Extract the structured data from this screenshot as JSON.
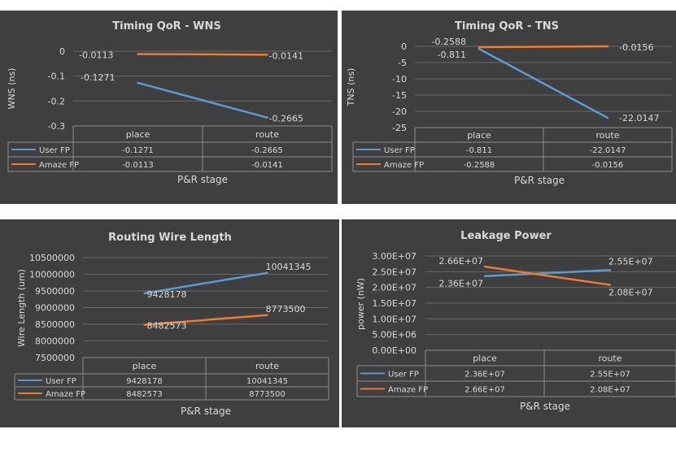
{
  "colors": {
    "user": "#5b9bd5",
    "amaze": "#ed7d31",
    "text": "#d9d9d9",
    "grid": "#6a6a6a",
    "table": "#8c8c8c"
  },
  "chart_data": [
    {
      "type": "line",
      "title": "Timing QoR - WNS",
      "xlabel": "P&R stage",
      "ylabel": "WNS (ns)",
      "categories": [
        "place",
        "route"
      ],
      "ylim": [
        -0.3,
        0
      ],
      "yticks": [
        "0",
        "-0.1",
        "-0.2",
        "-0.3"
      ],
      "ytick_values": [
        0,
        -0.1,
        -0.2,
        -0.3
      ],
      "series": [
        {
          "name": "User FP",
          "values": [
            -0.1271,
            -0.2665
          ],
          "labels": [
            "-0.1271",
            "-0.2665"
          ],
          "table": [
            "-0.1271",
            "-0.2665"
          ]
        },
        {
          "name": "Amaze FP",
          "values": [
            -0.0113,
            -0.0141
          ],
          "labels": [
            "-0.0113",
            "-0.0141"
          ],
          "table": [
            "-0.0113",
            "-0.0141"
          ]
        }
      ]
    },
    {
      "type": "line",
      "title": "Timing QoR - TNS",
      "xlabel": "P&R stage",
      "ylabel": "TNS (ns)",
      "categories": [
        "place",
        "route"
      ],
      "ylim": [
        -25,
        0
      ],
      "yticks": [
        "0",
        "-5",
        "-10",
        "-15",
        "-20",
        "-25"
      ],
      "ytick_values": [
        0,
        -5,
        -10,
        -15,
        -20,
        -25
      ],
      "series": [
        {
          "name": "User FP",
          "values": [
            -0.811,
            -22.0147
          ],
          "labels": [
            "-0.811",
            "-22.0147"
          ],
          "table": [
            "-0.811",
            "-22.0147"
          ]
        },
        {
          "name": "Amaze FP",
          "values": [
            -0.2588,
            -0.0156
          ],
          "labels": [
            "-0.2588",
            "-0.0156"
          ],
          "table": [
            "-0.2588",
            "-0.0156"
          ]
        }
      ]
    },
    {
      "type": "line",
      "title": "Routing Wire Length",
      "xlabel": "P&R stage",
      "ylabel": "Wire Length (um)",
      "categories": [
        "place",
        "route"
      ],
      "ylim": [
        7500000,
        10500000
      ],
      "yticks": [
        "10500000",
        "10000000",
        "9500000",
        "9000000",
        "8500000",
        "8000000",
        "7500000"
      ],
      "ytick_values": [
        10500000,
        10000000,
        9500000,
        9000000,
        8500000,
        8000000,
        7500000
      ],
      "series": [
        {
          "name": "User FP",
          "values": [
            9428178,
            10041345
          ],
          "labels": [
            "9428178",
            "10041345"
          ],
          "table": [
            "9428178",
            "10041345"
          ]
        },
        {
          "name": "Amaze FP",
          "values": [
            8482573,
            8773500
          ],
          "labels": [
            "8482573",
            "8773500"
          ],
          "table": [
            "8482573",
            "8773500"
          ]
        }
      ]
    },
    {
      "type": "line",
      "title": "Leakage Power",
      "xlabel": "P&R stage",
      "ylabel": "power (nW)",
      "categories": [
        "place",
        "route"
      ],
      "ylim": [
        0,
        30000000
      ],
      "yticks": [
        "3.00E+07",
        "2.50E+07",
        "2.00E+07",
        "1.50E+07",
        "1.00E+07",
        "5.00E+06",
        "0.00E+00"
      ],
      "ytick_values": [
        30000000,
        25000000,
        20000000,
        15000000,
        10000000,
        5000000,
        0
      ],
      "series": [
        {
          "name": "User FP",
          "values": [
            23600000,
            25500000
          ],
          "labels": [
            "2.36E+07",
            "2.55E+07"
          ],
          "table": [
            "2.36E+07",
            "2.55E+07"
          ]
        },
        {
          "name": "Amaze FP",
          "values": [
            26600000,
            20800000
          ],
          "labels": [
            "2.66E+07",
            "2.08E+07"
          ],
          "table": [
            "2.66E+07",
            "2.08E+07"
          ]
        }
      ]
    }
  ]
}
